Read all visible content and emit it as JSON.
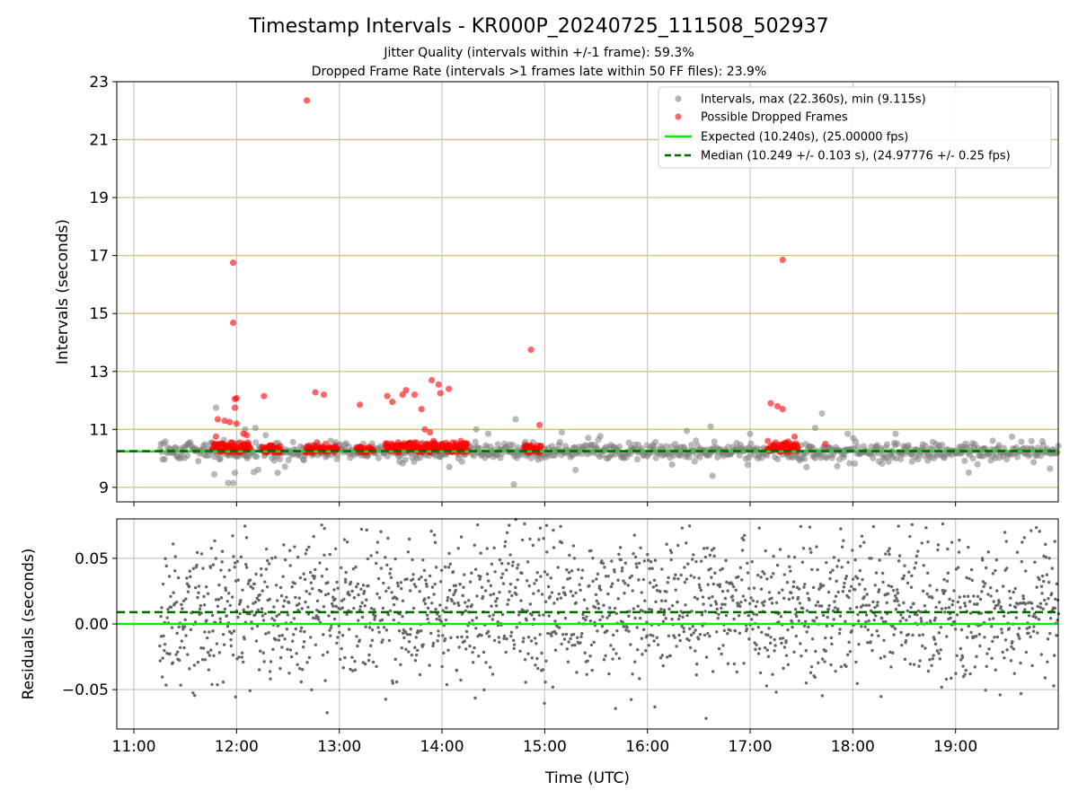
{
  "figure": {
    "title": "Timestamp Intervals - KR000P_20240725_111508_502937",
    "subtitle_1": "Jitter Quality (intervals within +/-1 frame): 59.3%",
    "subtitle_2": "Dropped Frame Rate (intervals >1 frames late within 50 FF files): 23.9%"
  },
  "colors": {
    "intervals": "#808080",
    "dropped": "#ff0000",
    "expected": "#00ee00",
    "median": "#006400",
    "hgrid": "#d2c080",
    "vgrid": "#c8c8c8"
  },
  "chart_data": [
    {
      "type": "scatter",
      "xlabel": "",
      "ylabel": "Intervals (seconds)",
      "xlim": [
        "10:50",
        "20:00"
      ],
      "ylim": [
        8.5,
        23
      ],
      "yticks": [
        "9",
        "11",
        "13",
        "15",
        "17",
        "19",
        "21",
        "23"
      ],
      "grid": true,
      "legend": {
        "placement": "upper right",
        "entries": [
          "Intervals, max (22.360s), min (9.115s)",
          "Possible Dropped Frames",
          "Expected (10.240s), (25.00000 fps)",
          "Median (10.249 +/- 0.103 s), (24.97776 +/- 0.25 fps)"
        ]
      },
      "expected_value": 10.24,
      "median_value": 10.249,
      "series": [
        {
          "name": "Intervals, max (22.360s), min (9.115s)",
          "approx_cluster": {
            "x_range": [
              "11:15",
              "20:00"
            ],
            "y_center": 10.24,
            "y_spread": 0.35
          },
          "outliers": [
            {
              "x": "11:48",
              "y": 11.75
            },
            {
              "x": "11:47",
              "y": 9.45
            },
            {
              "x": "11:55",
              "y": 9.15
            },
            {
              "x": "11:58",
              "y": 9.15
            },
            {
              "x": "11:59",
              "y": 9.5
            },
            {
              "x": "12:05",
              "y": 11.0
            },
            {
              "x": "12:11",
              "y": 11.05
            },
            {
              "x": "12:17",
              "y": 10.8
            },
            {
              "x": "12:24",
              "y": 9.5
            },
            {
              "x": "14:20",
              "y": 11.0
            },
            {
              "x": "14:27",
              "y": 10.85
            },
            {
              "x": "14:42",
              "y": 9.1
            },
            {
              "x": "14:43",
              "y": 11.35
            },
            {
              "x": "15:10",
              "y": 10.9
            },
            {
              "x": "15:18",
              "y": 9.6
            },
            {
              "x": "16:23",
              "y": 10.95
            },
            {
              "x": "16:37",
              "y": 11.1
            },
            {
              "x": "16:38",
              "y": 9.4
            },
            {
              "x": "17:00",
              "y": 10.85
            },
            {
              "x": "17:33",
              "y": 9.7
            },
            {
              "x": "17:38",
              "y": 11.05
            },
            {
              "x": "17:42",
              "y": 11.55
            },
            {
              "x": "17:57",
              "y": 10.85
            },
            {
              "x": "18:25",
              "y": 10.85
            }
          ]
        },
        {
          "name": "Possible Dropped Frames",
          "points": [
            {
              "x": "11:58",
              "y": 16.75
            },
            {
              "x": "11:58",
              "y": 14.68
            },
            {
              "x": "11:59",
              "y": 12.05
            },
            {
              "x": "12:00",
              "y": 12.08
            },
            {
              "x": "11:53",
              "y": 11.3
            },
            {
              "x": "11:56",
              "y": 11.25
            },
            {
              "x": "11:59",
              "y": 11.75
            },
            {
              "x": "12:00",
              "y": 11.2
            },
            {
              "x": "11:49",
              "y": 11.35
            },
            {
              "x": "11:48",
              "y": 10.75
            },
            {
              "x": "12:04",
              "y": 10.85
            },
            {
              "x": "12:06",
              "y": 10.8
            },
            {
              "x": "12:16",
              "y": 12.15
            },
            {
              "x": "12:41",
              "y": 22.35
            },
            {
              "x": "12:46",
              "y": 12.28
            },
            {
              "x": "12:51",
              "y": 12.2
            },
            {
              "x": "12:47",
              "y": 10.55
            },
            {
              "x": "12:52",
              "y": 10.5
            },
            {
              "x": "13:12",
              "y": 11.85
            },
            {
              "x": "13:28",
              "y": 12.15
            },
            {
              "x": "13:31",
              "y": 11.95
            },
            {
              "x": "13:37",
              "y": 12.2
            },
            {
              "x": "13:39",
              "y": 12.35
            },
            {
              "x": "13:44",
              "y": 12.2
            },
            {
              "x": "13:48",
              "y": 11.7
            },
            {
              "x": "13:50",
              "y": 11.0
            },
            {
              "x": "13:53",
              "y": 10.9
            },
            {
              "x": "13:54",
              "y": 12.7
            },
            {
              "x": "13:58",
              "y": 12.55
            },
            {
              "x": "13:59",
              "y": 12.25
            },
            {
              "x": "14:04",
              "y": 12.4
            },
            {
              "x": "13:45",
              "y": 10.55
            },
            {
              "x": "13:55",
              "y": 10.6
            },
            {
              "x": "14:11",
              "y": 10.6
            },
            {
              "x": "14:52",
              "y": 13.75
            },
            {
              "x": "14:57",
              "y": 11.15
            },
            {
              "x": "17:12",
              "y": 11.9
            },
            {
              "x": "17:16",
              "y": 11.8
            },
            {
              "x": "17:19",
              "y": 11.7
            },
            {
              "x": "17:19",
              "y": 16.85
            },
            {
              "x": "17:26",
              "y": 10.75
            },
            {
              "x": "17:44",
              "y": 10.5
            }
          ],
          "clusters": [
            {
              "x_range": [
                "11:46",
                "12:08"
              ],
              "y_range": [
                10.2,
                10.55
              ]
            },
            {
              "x_range": [
                "12:15",
                "12:26"
              ],
              "y_range": [
                10.2,
                10.45
              ]
            },
            {
              "x_range": [
                "12:40",
                "12:59"
              ],
              "y_range": [
                10.2,
                10.45
              ]
            },
            {
              "x_range": [
                "13:10",
                "13:20"
              ],
              "y_range": [
                10.2,
                10.4
              ]
            },
            {
              "x_range": [
                "13:27",
                "14:15"
              ],
              "y_range": [
                10.2,
                10.55
              ]
            },
            {
              "x_range": [
                "14:48",
                "14:58"
              ],
              "y_range": [
                10.2,
                10.45
              ]
            },
            {
              "x_range": [
                "17:10",
                "17:28"
              ],
              "y_range": [
                10.2,
                10.6
              ]
            }
          ]
        }
      ]
    },
    {
      "type": "scatter",
      "xlabel": "Time (UTC)",
      "ylabel": "Residuals (seconds)",
      "xlim": [
        "10:50",
        "20:00"
      ],
      "ylim": [
        -0.08,
        0.08
      ],
      "xticks": [
        "11:00",
        "12:00",
        "13:00",
        "14:00",
        "15:00",
        "16:00",
        "17:00",
        "18:00",
        "19:00"
      ],
      "yticks": [
        "0.05",
        "0.00",
        "−0.05"
      ],
      "grid": true,
      "expected_value": 0.0,
      "median_value": 0.009,
      "series": [
        {
          "approx_cluster": {
            "x_range": [
              "11:15",
              "20:00"
            ],
            "y_center": 0.012,
            "y_spread": 0.028
          }
        }
      ]
    }
  ]
}
